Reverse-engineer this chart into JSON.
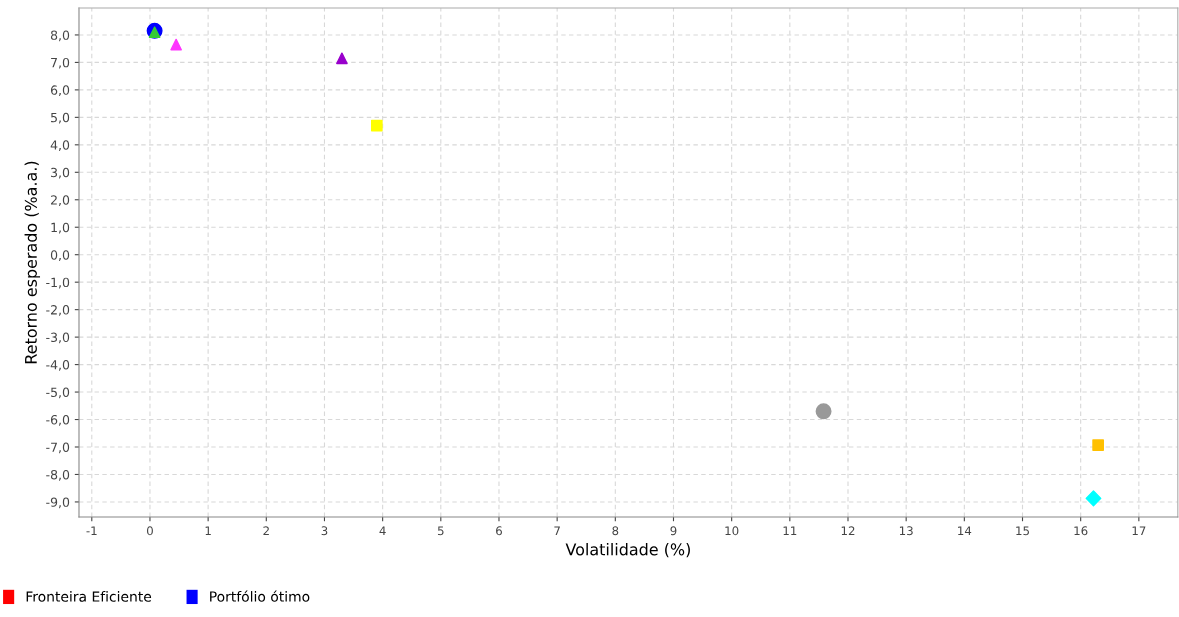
{
  "chart_data": {
    "type": "scatter",
    "xlabel": "Volatilidade (%)",
    "ylabel": "Retorno esperado (%a.a.)",
    "xlim": [
      -1.22,
      17.67
    ],
    "ylim": [
      -9.55,
      8.98
    ],
    "xticks": [
      -1,
      0,
      1,
      2,
      3,
      4,
      5,
      6,
      7,
      8,
      9,
      10,
      11,
      12,
      13,
      14,
      15,
      16,
      17
    ],
    "yticks": [
      {
        "value": 8,
        "label": "8,0"
      },
      {
        "value": 7,
        "label": "7,0"
      },
      {
        "value": 6,
        "label": "6,0"
      },
      {
        "value": 5,
        "label": "5,0"
      },
      {
        "value": 4,
        "label": "4,0"
      },
      {
        "value": 3,
        "label": "3,0"
      },
      {
        "value": 2,
        "label": "2,0"
      },
      {
        "value": 1,
        "label": "1,0"
      },
      {
        "value": 0,
        "label": "0,0"
      },
      {
        "value": -1,
        "label": "-1,0"
      },
      {
        "value": -2,
        "label": "-2,0"
      },
      {
        "value": -3,
        "label": "-3,0"
      },
      {
        "value": -4,
        "label": "-4,0"
      },
      {
        "value": -5,
        "label": "-5,0"
      },
      {
        "value": -6,
        "label": "-6,0"
      },
      {
        "value": -7,
        "label": "-7,0"
      },
      {
        "value": -8,
        "label": "-8,0"
      },
      {
        "value": -9,
        "label": "-9,0"
      }
    ],
    "grid": true,
    "legend": "bottom left",
    "series": [
      {
        "name": "Fronteira Eficiente",
        "color": "#ff0000",
        "marker": "square"
      },
      {
        "name": "Portfólio ótimo",
        "color": "#0000ff",
        "marker": "circle",
        "x": [
          0.08
        ],
        "values": [
          8.15
        ]
      },
      {
        "color": "#33cc33",
        "marker": "triangle",
        "x": [
          0.08
        ],
        "values": [
          8.1
        ]
      },
      {
        "color": "#ff33ff",
        "marker": "triangle",
        "x": [
          0.45
        ],
        "values": [
          7.65
        ]
      },
      {
        "color": "#9900cc",
        "marker": "triangle",
        "x": [
          3.3
        ],
        "values": [
          7.15
        ]
      },
      {
        "color": "#ffff00",
        "marker": "square",
        "x": [
          3.9
        ],
        "values": [
          4.7
        ]
      },
      {
        "color": "#999999",
        "marker": "circle",
        "x": [
          11.58
        ],
        "values": [
          -5.7
        ]
      },
      {
        "color": "#ffc000",
        "marker": "square",
        "x": [
          16.3
        ],
        "values": [
          -6.93
        ]
      },
      {
        "color": "#00ffff",
        "marker": "diamond",
        "x": [
          16.22
        ],
        "values": [
          -8.87
        ]
      }
    ]
  }
}
